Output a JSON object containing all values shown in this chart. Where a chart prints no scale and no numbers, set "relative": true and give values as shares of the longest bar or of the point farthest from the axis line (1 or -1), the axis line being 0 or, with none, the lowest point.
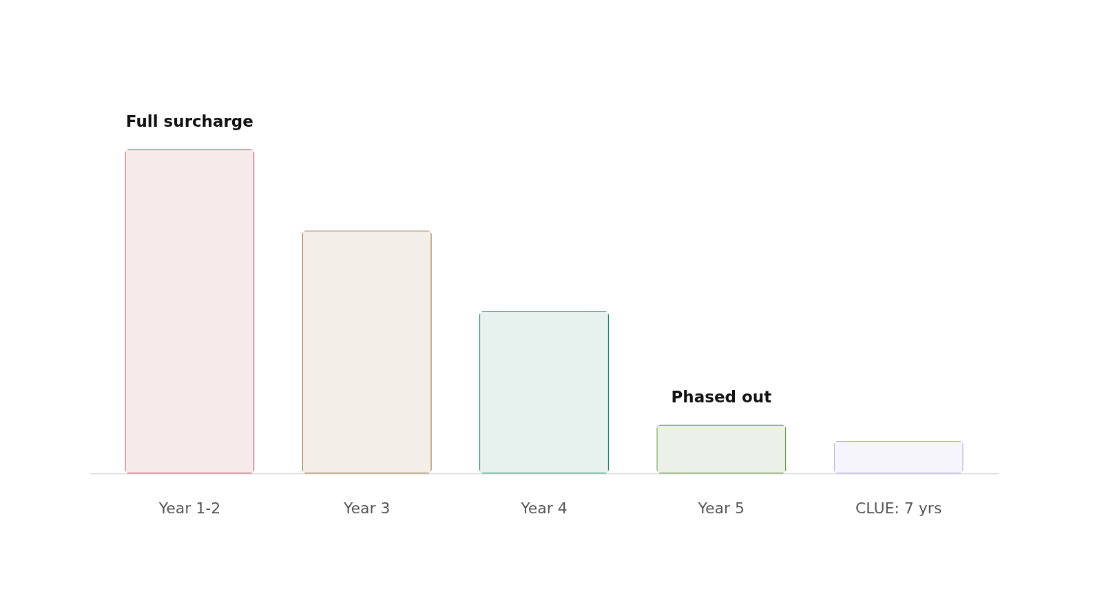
{
  "chart_data": {
    "type": "bar",
    "relative": true,
    "categories": [
      "Year 1-2",
      "Year 3",
      "Year 4",
      "Year 5",
      "CLUE: 7 yrs"
    ],
    "values": [
      1,
      0.75,
      0.5,
      0.15,
      0.1
    ],
    "colors": [
      "#b5333a",
      "#8a5a1a",
      "#0f7a5a",
      "#3e7a1a",
      "#a89be0"
    ],
    "annotations": [
      {
        "text": "Full surcharge",
        "x": "Year 1-2",
        "y": 1
      },
      {
        "text": "Phased out",
        "x": "Year 5",
        "y": 0.15
      }
    ],
    "grid": false
  }
}
